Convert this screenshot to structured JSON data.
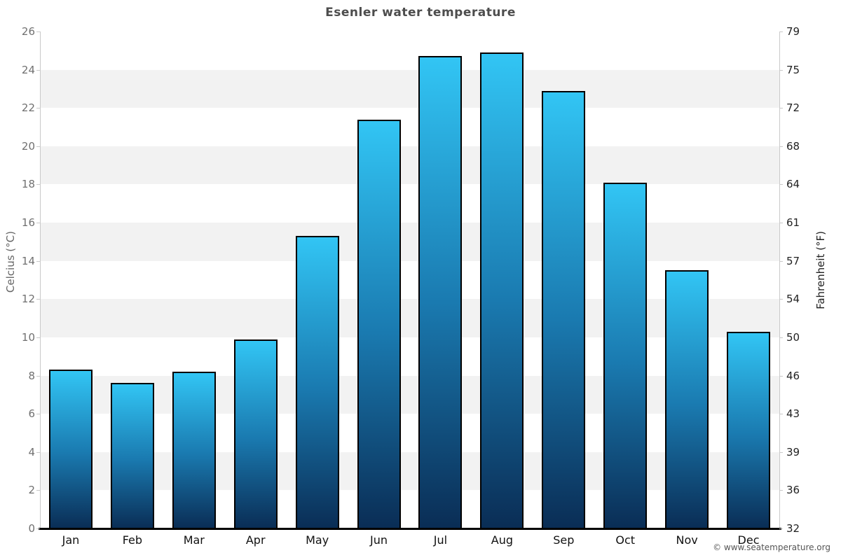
{
  "page": {
    "title": "Esenler water temperature",
    "footer": "© www.seatemperature.org"
  },
  "chart_data": {
    "type": "bar",
    "title": "Esenler water temperature",
    "categories": [
      "Jan",
      "Feb",
      "Mar",
      "Apr",
      "May",
      "Jun",
      "Jul",
      "Aug",
      "Sep",
      "Oct",
      "Nov",
      "Dec"
    ],
    "values": [
      8.3,
      7.6,
      8.2,
      9.9,
      15.3,
      21.4,
      24.7,
      24.9,
      22.9,
      18.1,
      13.5,
      10.3
    ],
    "ylabel_left": "Celcius (°C)",
    "ylabel_right": "Fahrenheit (°F)",
    "yticks_celsius": [
      26,
      24,
      22,
      20,
      18,
      16,
      14,
      12,
      10,
      8,
      6,
      4,
      2,
      0
    ],
    "yticks_fahrenheit": [
      79,
      75,
      72,
      68,
      64,
      61,
      57,
      54,
      50,
      46,
      43,
      39,
      36,
      32
    ],
    "ylim": [
      0,
      26
    ],
    "grid": "alternating-horizontal-bands",
    "legend": "none",
    "colors": {
      "bar_gradient_top": "#32c5f4",
      "bar_gradient_mid": "#1a7ab0",
      "bar_gradient_bottom": "#0a2d55",
      "bar_border": "#000000",
      "band_fill": "#f2f2f2",
      "axis_line": "#c9c9c9",
      "baseline": "#000000",
      "title_color": "#4d4d4d",
      "left_tick_color": "#707070",
      "right_tick_color": "#222222"
    }
  }
}
